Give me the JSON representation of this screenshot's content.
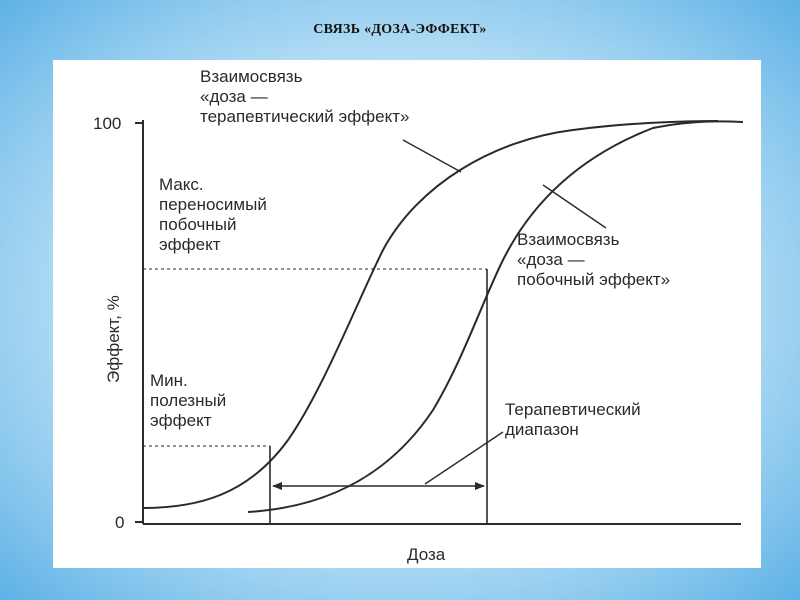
{
  "slide": {
    "title": "СВЯЗЬ «ДОЗА-ЭФФЕКТ»"
  },
  "diagram": {
    "y_axis_label": "Эффект, %",
    "x_axis_label": "Доза",
    "y_tick_top": "100",
    "y_tick_bottom": "0",
    "curve_therapeutic_label": [
      "Взаимосвязь",
      "«доза —",
      "терапевтический эффект»"
    ],
    "curve_side_label": [
      "Взаимосвязь",
      "«доза —",
      "побочный эффект»"
    ],
    "max_side_effect_label": [
      "Макс.",
      "переносимый",
      "побочный",
      "эффект"
    ],
    "min_useful_effect_label": [
      "Мин.",
      "полезный",
      "эффект"
    ],
    "therapeutic_range_label": [
      "Терапевтический",
      "диапазон"
    ],
    "colors": {
      "line": "#2a2a2a",
      "panel": "#ffffff"
    }
  }
}
